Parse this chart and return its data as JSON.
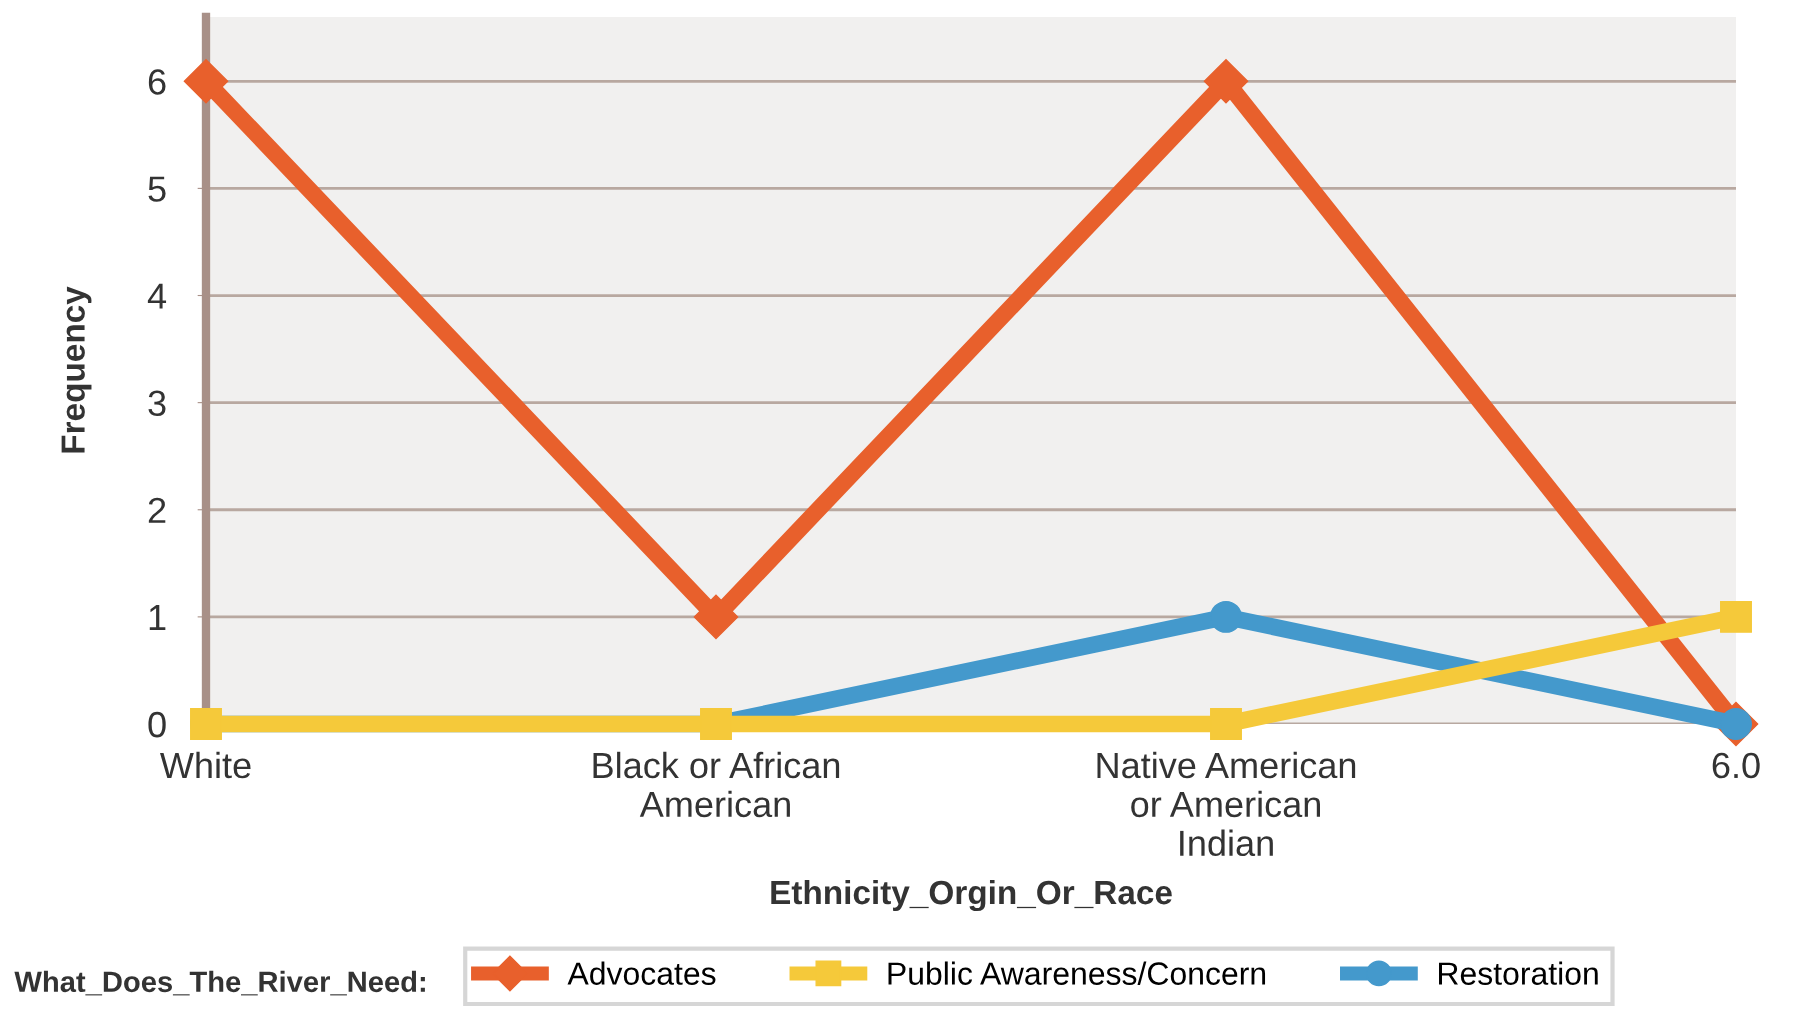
{
  "chart_data": {
    "type": "line",
    "xlabel": "Ethnicity_Orgin_Or_Race",
    "ylabel": "Frequency",
    "legend_title": "What_Does_The_River_Need:",
    "categories": [
      "White",
      "Black or African American",
      "Native American or American Indian",
      "6.0"
    ],
    "series": [
      {
        "name": "Advocates",
        "color": "#e8602c",
        "values": [
          6,
          1,
          6,
          0
        ],
        "marker": "diamond"
      },
      {
        "name": "Public Awareness/Concern",
        "color": "#f5c93a",
        "values": [
          0,
          0,
          0,
          1
        ],
        "marker": "square"
      },
      {
        "name": "Restoration",
        "color": "#4499cc",
        "values": [
          0,
          0,
          1,
          0
        ],
        "marker": "circle"
      }
    ],
    "ylim": [
      0,
      6.6
    ],
    "yticks": [
      0,
      1,
      2,
      3,
      4,
      5,
      6
    ],
    "grid": "y",
    "legend": "bottom",
    "line_style": "solid"
  }
}
